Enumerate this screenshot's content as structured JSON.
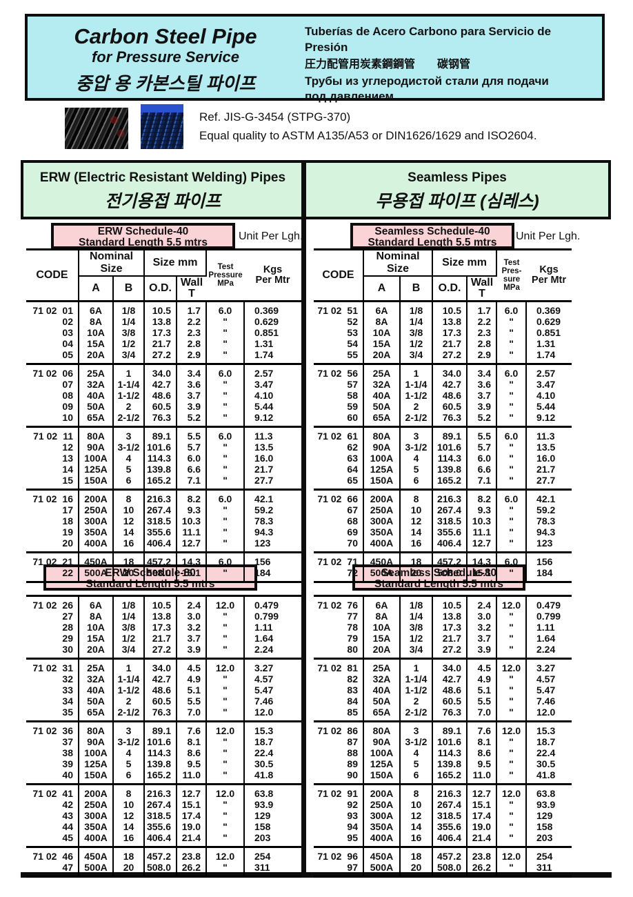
{
  "page": {
    "header": {
      "title_en": "Carbon Steel Pipe",
      "subtitle_en": "for Pressure Service",
      "title_ko": "중압 용 카본스틸 파이프",
      "line_es": "Tuberías de Acero Carbono para Servicio de Presión",
      "line_cjk": "圧力配管用炭素鋼鋼管　　碳钢管",
      "line_ru1": "Трубы из углеродистой стали для подачи",
      "line_ru2": "под давлением"
    },
    "reference": {
      "line1": "Ref. JIS-G-3454 (STPG-370)",
      "line2": "Equal quality to ASTM A135/A53 or DIN1626/1629 and ISO2604."
    },
    "sections": {
      "erw": {
        "title_en": "ERW (Electric Resistant Welding) Pipes",
        "title_ko": "전기용접 파이프"
      },
      "seamless": {
        "title_en": "Seamless Pipes",
        "title_ko": "무용접 파이프 (심레스)"
      }
    },
    "colors": {
      "header_bg": "#b5ecf2",
      "section_bg": "#d6f3de",
      "schedule_bg": "#f9d3d6",
      "border": "#0d0d0d"
    },
    "icons": {
      "photo_dark": "black-steel-pipes-photo",
      "photo_blue": "blue-stacked-pipes-photo"
    }
  },
  "tables": [
    {
      "id": "erw-sch40",
      "title1": "ERW Schedule-40",
      "title2": "Standard Length 5.5 mtrs",
      "unit_label": "Unit Per Lgh.",
      "has_header": true,
      "header": {
        "code": "CODE",
        "nominal": "Nominal Size",
        "size": "Size mm",
        "a": "A",
        "b": "B",
        "od": "O.D.",
        "wall": "Wall\nT",
        "test": "Test\nPressure\nMPa",
        "kgs": "Kgs\nPer Mtr"
      },
      "groups": [
        {
          "prefix": "71 02",
          "rows": [
            [
              "01",
              "6A",
              "1/8",
              "10.5",
              "1.7",
              "6.0",
              "0.369"
            ],
            [
              "02",
              "8A",
              "1/4",
              "13.8",
              "2.2",
              "\"",
              "0.629"
            ],
            [
              "03",
              "10A",
              "3/8",
              "17.3",
              "2.3",
              "\"",
              "0.851"
            ],
            [
              "04",
              "15A",
              "1/2",
              "21.7",
              "2.8",
              "\"",
              "1.31"
            ],
            [
              "05",
              "20A",
              "3/4",
              "27.2",
              "2.9",
              "\"",
              "1.74"
            ]
          ]
        },
        {
          "prefix": "71 02",
          "rows": [
            [
              "06",
              "25A",
              "1",
              "34.0",
              "3.4",
              "6.0",
              "2.57"
            ],
            [
              "07",
              "32A",
              "1-1/4",
              "42.7",
              "3.6",
              "\"",
              "3.47"
            ],
            [
              "08",
              "40A",
              "1-1/2",
              "48.6",
              "3.7",
              "\"",
              "4.10"
            ],
            [
              "09",
              "50A",
              "2",
              "60.5",
              "3.9",
              "\"",
              "5.44"
            ],
            [
              "10",
              "65A",
              "2-1/2",
              "76.3",
              "5.2",
              "\"",
              "9.12"
            ]
          ]
        },
        {
          "prefix": "71 02",
          "rows": [
            [
              "11",
              "80A",
              "3",
              "89.1",
              "5.5",
              "6.0",
              "11.3"
            ],
            [
              "12",
              "90A",
              "3-1/2",
              "101.6",
              "5.7",
              "\"",
              "13.5"
            ],
            [
              "13",
              "100A",
              "4",
              "114.3",
              "6.0",
              "\"",
              "16.0"
            ],
            [
              "14",
              "125A",
              "5",
              "139.8",
              "6.6",
              "\"",
              "21.7"
            ],
            [
              "15",
              "150A",
              "6",
              "165.2",
              "7.1",
              "\"",
              "27.7"
            ]
          ]
        },
        {
          "prefix": "71 02",
          "rows": [
            [
              "16",
              "200A",
              "8",
              "216.3",
              "8.2",
              "6.0",
              "42.1"
            ],
            [
              "17",
              "250A",
              "10",
              "267.4",
              "9.3",
              "\"",
              "59.2"
            ],
            [
              "18",
              "300A",
              "12",
              "318.5",
              "10.3",
              "\"",
              "78.3"
            ],
            [
              "19",
              "350A",
              "14",
              "355.6",
              "11.1",
              "\"",
              "94.3"
            ],
            [
              "20",
              "400A",
              "16",
              "406.4",
              "12.7",
              "\"",
              "123"
            ]
          ]
        },
        {
          "prefix": "71 02",
          "rows": [
            [
              "21",
              "450A",
              "18",
              "457.2",
              "14.3",
              "6.0",
              "156"
            ],
            [
              "22",
              "500A",
              "20",
              "508.0",
              "15.1",
              "\"",
              "184"
            ]
          ]
        }
      ]
    },
    {
      "id": "erw-sch80",
      "title1": "ERW Schedule-80",
      "title2": "Standard Length 5.5 mtrs",
      "has_header": false,
      "groups": [
        {
          "prefix": "71 02",
          "rows": [
            [
              "26",
              "6A",
              "1/8",
              "10.5",
              "2.4",
              "12.0",
              "0.479"
            ],
            [
              "27",
              "8A",
              "1/4",
              "13.8",
              "3.0",
              "\"",
              "0.799"
            ],
            [
              "28",
              "10A",
              "3/8",
              "17.3",
              "3.2",
              "\"",
              "1.11"
            ],
            [
              "29",
              "15A",
              "1/2",
              "21.7",
              "3.7",
              "\"",
              "1.64"
            ],
            [
              "30",
              "20A",
              "3/4",
              "27.2",
              "3.9",
              "\"",
              "2.24"
            ]
          ]
        },
        {
          "prefix": "71 02",
          "rows": [
            [
              "31",
              "25A",
              "1",
              "34.0",
              "4.5",
              "12.0",
              "3.27"
            ],
            [
              "32",
              "32A",
              "1-1/4",
              "42.7",
              "4.9",
              "\"",
              "4.57"
            ],
            [
              "33",
              "40A",
              "1-1/2",
              "48.6",
              "5.1",
              "\"",
              "5.47"
            ],
            [
              "34",
              "50A",
              "2",
              "60.5",
              "5.5",
              "\"",
              "7.46"
            ],
            [
              "35",
              "65A",
              "2-1/2",
              "76.3",
              "7.0",
              "\"",
              "12.0"
            ]
          ]
        },
        {
          "prefix": "71 02",
          "rows": [
            [
              "36",
              "80A",
              "3",
              "89.1",
              "7.6",
              "12.0",
              "15.3"
            ],
            [
              "37",
              "90A",
              "3-1/2",
              "101.6",
              "8.1",
              "\"",
              "18.7"
            ],
            [
              "38",
              "100A",
              "4",
              "114.3",
              "8.6",
              "\"",
              "22.4"
            ],
            [
              "39",
              "125A",
              "5",
              "139.8",
              "9.5",
              "\"",
              "30.5"
            ],
            [
              "40",
              "150A",
              "6",
              "165.2",
              "11.0",
              "\"",
              "41.8"
            ]
          ]
        },
        {
          "prefix": "71 02",
          "rows": [
            [
              "41",
              "200A",
              "8",
              "216.3",
              "12.7",
              "12.0",
              "63.8"
            ],
            [
              "42",
              "250A",
              "10",
              "267.4",
              "15.1",
              "\"",
              "93.9"
            ],
            [
              "43",
              "300A",
              "12",
              "318.5",
              "17.4",
              "\"",
              "129"
            ],
            [
              "44",
              "350A",
              "14",
              "355.6",
              "19.0",
              "\"",
              "158"
            ],
            [
              "45",
              "400A",
              "16",
              "406.4",
              "21.4",
              "\"",
              "203"
            ]
          ]
        },
        {
          "prefix": "71 02",
          "rows": [
            [
              "46",
              "450A",
              "18",
              "457.2",
              "23.8",
              "12.0",
              "254"
            ],
            [
              "47",
              "500A",
              "20",
              "508.0",
              "26.2",
              "\"",
              "311"
            ]
          ]
        }
      ]
    },
    {
      "id": "seamless-sch40",
      "title1": "Seamless Schedule-40",
      "title2": "Standard Length 5.5 mtrs",
      "unit_label": "Unit Per Lgh.",
      "has_header": true,
      "header": {
        "code": "CODE",
        "nominal": "Nominal Size",
        "size": "Size mm",
        "a": "A",
        "b": "B",
        "od": "O.D.",
        "wall": "Wall\nT",
        "test": "Test\nPres-\nsure\nMPa",
        "kgs": "Kgs\nPer Mtr"
      },
      "groups": [
        {
          "prefix": "71 02",
          "rows": [
            [
              "51",
              "6A",
              "1/8",
              "10.5",
              "1.7",
              "6.0",
              "0.369"
            ],
            [
              "52",
              "8A",
              "1/4",
              "13.8",
              "2.2",
              "\"",
              "0.629"
            ],
            [
              "53",
              "10A",
              "3/8",
              "17.3",
              "2.3",
              "\"",
              "0.851"
            ],
            [
              "54",
              "15A",
              "1/2",
              "21.7",
              "2.8",
              "\"",
              "1.31"
            ],
            [
              "55",
              "20A",
              "3/4",
              "27.2",
              "2.9",
              "\"",
              "1.74"
            ]
          ]
        },
        {
          "prefix": "71 02",
          "rows": [
            [
              "56",
              "25A",
              "1",
              "34.0",
              "3.4",
              "6.0",
              "2.57"
            ],
            [
              "57",
              "32A",
              "1-1/4",
              "42.7",
              "3.6",
              "\"",
              "3.47"
            ],
            [
              "58",
              "40A",
              "1-1/2",
              "48.6",
              "3.7",
              "\"",
              "4.10"
            ],
            [
              "59",
              "50A",
              "2",
              "60.5",
              "3.9",
              "\"",
              "5.44"
            ],
            [
              "60",
              "65A",
              "2-1/2",
              "76.3",
              "5.2",
              "\"",
              "9.12"
            ]
          ]
        },
        {
          "prefix": "71 02",
          "rows": [
            [
              "61",
              "80A",
              "3",
              "89.1",
              "5.5",
              "6.0",
              "11.3"
            ],
            [
              "62",
              "90A",
              "3-1/2",
              "101.6",
              "5.7",
              "\"",
              "13.5"
            ],
            [
              "63",
              "100A",
              "4",
              "114.3",
              "6.0",
              "\"",
              "16.0"
            ],
            [
              "64",
              "125A",
              "5",
              "139.8",
              "6.6",
              "\"",
              "21.7"
            ],
            [
              "65",
              "150A",
              "6",
              "165.2",
              "7.1",
              "\"",
              "27.7"
            ]
          ]
        },
        {
          "prefix": "71 02",
          "rows": [
            [
              "66",
              "200A",
              "8",
              "216.3",
              "8.2",
              "6.0",
              "42.1"
            ],
            [
              "67",
              "250A",
              "10",
              "267.4",
              "9.3",
              "\"",
              "59.2"
            ],
            [
              "68",
              "300A",
              "12",
              "318.5",
              "10.3",
              "\"",
              "78.3"
            ],
            [
              "69",
              "350A",
              "14",
              "355.6",
              "11.1",
              "\"",
              "94.3"
            ],
            [
              "70",
              "400A",
              "16",
              "406.4",
              "12.7",
              "\"",
              "123"
            ]
          ]
        },
        {
          "prefix": "71 02",
          "rows": [
            [
              "71",
              "450A",
              "18",
              "457.2",
              "14.3",
              "6.0",
              "156"
            ],
            [
              "72",
              "500A",
              "20",
              "508.0",
              "15.1",
              "\"",
              "184"
            ]
          ]
        }
      ]
    },
    {
      "id": "seamless-sch80",
      "title1": "Seamless Schedule-80",
      "title2": "Standard Length 5.5 mtrs",
      "has_header": false,
      "groups": [
        {
          "prefix": "71 02",
          "rows": [
            [
              "76",
              "6A",
              "1/8",
              "10.5",
              "2.4",
              "12.0",
              "0.479"
            ],
            [
              "77",
              "8A",
              "1/4",
              "13.8",
              "3.0",
              "\"",
              "0.799"
            ],
            [
              "78",
              "10A",
              "3/8",
              "17.3",
              "3.2",
              "\"",
              "1.11"
            ],
            [
              "79",
              "15A",
              "1/2",
              "21.7",
              "3.7",
              "\"",
              "1.64"
            ],
            [
              "80",
              "20A",
              "3/4",
              "27.2",
              "3.9",
              "\"",
              "2.24"
            ]
          ]
        },
        {
          "prefix": "71 02",
          "rows": [
            [
              "81",
              "25A",
              "1",
              "34.0",
              "4.5",
              "12.0",
              "3.27"
            ],
            [
              "82",
              "32A",
              "1-1/4",
              "42.7",
              "4.9",
              "\"",
              "4.57"
            ],
            [
              "83",
              "40A",
              "1-1/2",
              "48.6",
              "5.1",
              "\"",
              "5.47"
            ],
            [
              "84",
              "50A",
              "2",
              "60.5",
              "5.5",
              "\"",
              "7.46"
            ],
            [
              "85",
              "65A",
              "2-1/2",
              "76.3",
              "7.0",
              "\"",
              "12.0"
            ]
          ]
        },
        {
          "prefix": "71 02",
          "rows": [
            [
              "86",
              "80A",
              "3",
              "89.1",
              "7.6",
              "12.0",
              "15.3"
            ],
            [
              "87",
              "90A",
              "3-1/2",
              "101.6",
              "8.1",
              "\"",
              "18.7"
            ],
            [
              "88",
              "100A",
              "4",
              "114.3",
              "8.6",
              "\"",
              "22.4"
            ],
            [
              "89",
              "125A",
              "5",
              "139.8",
              "9.5",
              "\"",
              "30.5"
            ],
            [
              "90",
              "150A",
              "6",
              "165.2",
              "11.0",
              "\"",
              "41.8"
            ]
          ]
        },
        {
          "prefix": "71 02",
          "rows": [
            [
              "91",
              "200A",
              "8",
              "216.3",
              "12.7",
              "12.0",
              "63.8"
            ],
            [
              "92",
              "250A",
              "10",
              "267.4",
              "15.1",
              "\"",
              "93.9"
            ],
            [
              "93",
              "300A",
              "12",
              "318.5",
              "17.4",
              "\"",
              "129"
            ],
            [
              "94",
              "350A",
              "14",
              "355.6",
              "19.0",
              "\"",
              "158"
            ],
            [
              "95",
              "400A",
              "16",
              "406.4",
              "21.4",
              "\"",
              "203"
            ]
          ]
        },
        {
          "prefix": "71 02",
          "rows": [
            [
              "96",
              "450A",
              "18",
              "457.2",
              "23.8",
              "12.0",
              "254"
            ],
            [
              "97",
              "500A",
              "20",
              "508.0",
              "26.2",
              "\"",
              "311"
            ]
          ]
        }
      ]
    }
  ]
}
